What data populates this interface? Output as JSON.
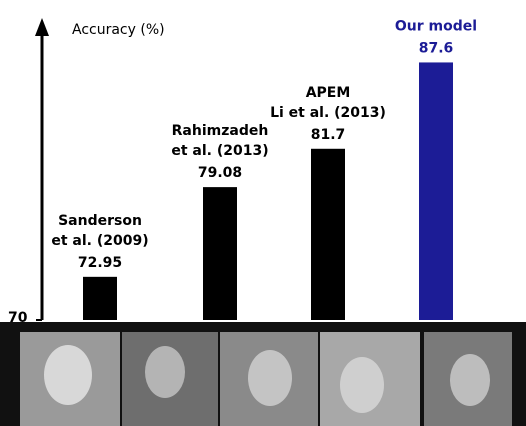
{
  "chart_data": {
    "type": "bar",
    "y_label": "Accuracy (%)",
    "categories": [
      [
        "Sanderson",
        "et al. (2009)"
      ],
      [
        "Rahimzadeh",
        "et al.  (2013)"
      ],
      [
        "APEM",
        "Li et al. (2013)"
      ],
      [
        "Our model"
      ]
    ],
    "values": [
      72.95,
      79.08,
      81.7,
      87.6
    ],
    "colors": [
      "#000000",
      "#000000",
      "#000000",
      "#1c1c96"
    ],
    "ylim": [
      70,
      90.5
    ],
    "yticks": [
      70
    ]
  }
}
